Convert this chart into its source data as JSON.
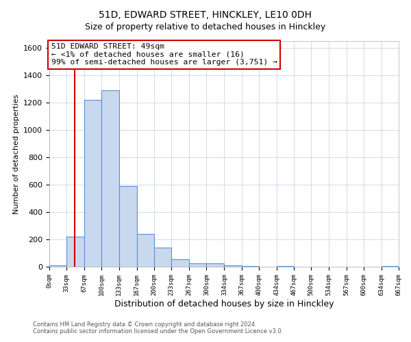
{
  "title": "51D, EDWARD STREET, HINCKLEY, LE10 0DH",
  "subtitle": "Size of property relative to detached houses in Hinckley",
  "xlabel": "Distribution of detached houses by size in Hinckley",
  "ylabel": "Number of detached properties",
  "bin_edges": [
    0,
    33,
    67,
    100,
    133,
    167,
    200,
    233,
    267,
    300,
    334,
    367,
    400,
    434,
    467,
    500,
    534,
    567,
    600,
    634,
    667
  ],
  "bar_heights": [
    10,
    220,
    1220,
    1290,
    590,
    240,
    140,
    55,
    25,
    25,
    10,
    5,
    0,
    3,
    0,
    0,
    0,
    0,
    0,
    3
  ],
  "bar_color": "#c8d8ef",
  "bar_edge_color": "#5b8fc9",
  "property_line_x": 49,
  "property_line_color": "#cc0000",
  "ylim": [
    0,
    1650
  ],
  "yticks": [
    0,
    200,
    400,
    600,
    800,
    1000,
    1200,
    1400,
    1600
  ],
  "annotation_title": "51D EDWARD STREET: 49sqm",
  "annotation_line1": "← <1% of detached houses are smaller (16)",
  "annotation_line2": "99% of semi-detached houses are larger (3,751) →",
  "annotation_box_facecolor": "#ffffff",
  "annotation_box_edgecolor": "#cc0000",
  "footer_line1": "Contains HM Land Registry data © Crown copyright and database right 2024.",
  "footer_line2": "Contains public sector information licensed under the Open Government Licence v3.0.",
  "fig_facecolor": "#ffffff",
  "plot_facecolor": "#ffffff",
  "grid_color": "#c8d4e8",
  "title_fontsize": 10,
  "subtitle_fontsize": 9,
  "xlabel_fontsize": 9,
  "ylabel_fontsize": 8,
  "tick_labels": [
    "0sqm",
    "33sqm",
    "67sqm",
    "100sqm",
    "133sqm",
    "167sqm",
    "200sqm",
    "233sqm",
    "267sqm",
    "300sqm",
    "334sqm",
    "367sqm",
    "400sqm",
    "434sqm",
    "467sqm",
    "500sqm",
    "534sqm",
    "567sqm",
    "600sqm",
    "634sqm",
    "667sqm"
  ]
}
